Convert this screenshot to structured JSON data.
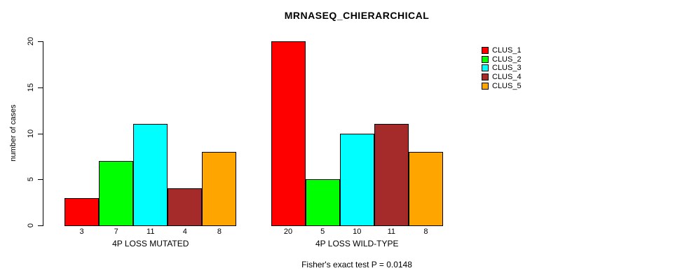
{
  "chart_data": {
    "type": "bar",
    "title": "MRNASEQ_CHIERARCHICAL",
    "xlabel": "",
    "ylabel": "number of cases",
    "ylim": [
      0,
      20
    ],
    "yticks": [
      0,
      5,
      10,
      15,
      20
    ],
    "grid": false,
    "categories": [
      "4P LOSS MUTATED",
      "4P LOSS WILD-TYPE"
    ],
    "series": [
      {
        "name": "CLUS_1",
        "color": "#FF0000",
        "values": [
          3,
          20
        ]
      },
      {
        "name": "CLUS_2",
        "color": "#00FF00",
        "values": [
          7,
          5
        ]
      },
      {
        "name": "CLUS_3",
        "color": "#00FFFF",
        "values": [
          11,
          10
        ]
      },
      {
        "name": "CLUS_4",
        "color": "#A52A2A",
        "values": [
          4,
          11
        ]
      },
      {
        "name": "CLUS_5",
        "color": "#FFA500",
        "values": [
          8,
          8
        ]
      }
    ],
    "legend": [
      "CLUS_1",
      "CLUS_2",
      "CLUS_3",
      "CLUS_4",
      "CLUS_5"
    ],
    "legend_position": "top-right-outside",
    "bar_value_labels_shown": true,
    "annotation": "Fisher's exact test P = 0.0148"
  }
}
